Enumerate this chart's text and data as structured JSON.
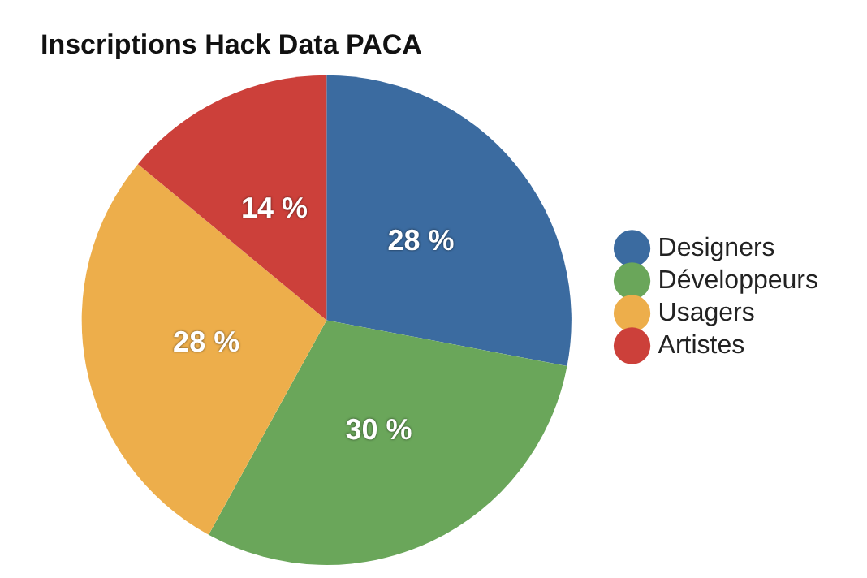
{
  "chart_data": {
    "type": "pie",
    "title": "Inscriptions Hack Data PACA",
    "categories": [
      "Designers",
      "Développeurs",
      "Usagers",
      "Artistes"
    ],
    "values": [
      28,
      30,
      28,
      14
    ],
    "colors": [
      "#3b6ba0",
      "#6aa65a",
      "#edae4b",
      "#cc403a"
    ],
    "value_labels": [
      "28 %",
      "30 %",
      "28 %",
      "14 %"
    ],
    "legend": "right"
  }
}
